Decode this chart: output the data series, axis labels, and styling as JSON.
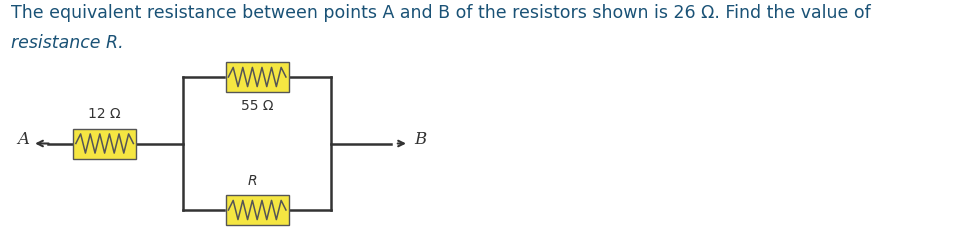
{
  "title_line1": "The equivalent resistance between points A and B of the resistors shown is 26 Ω. Find the value of",
  "title_line2": "resistance R.",
  "title_color": "#1a5276",
  "title_fontsize": 12.5,
  "bg_color": "#ffffff",
  "resistor_fill": "#f5e642",
  "resistor_stroke": "#555555",
  "wire_color": "#333333",
  "label_55": "55 Ω",
  "label_R": "R",
  "label_12": "12 Ω",
  "label_A": "A",
  "label_B": "B",
  "text_color": "#333333",
  "text_fontsize": 11
}
